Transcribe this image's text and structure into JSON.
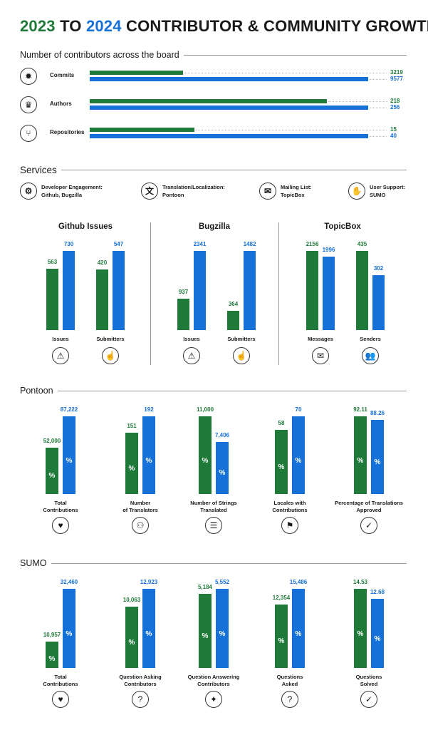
{
  "title": {
    "year1": "2023",
    "to": "TO",
    "year2": "2024",
    "rest": "CONTRIBUTOR & COMMUNITY GROWTH"
  },
  "colors": {
    "y2023": "#1f7a3a",
    "y2024": "#1570d8"
  },
  "sections": {
    "contributors": "Number of contributors across the board",
    "services": "Services",
    "pontoon": "Pontoon",
    "sumo": "SUMO"
  },
  "contributors": [
    {
      "label": "Commits",
      "icon": "commits-icon",
      "v2023": 3219,
      "v2024": 9577,
      "t2023": "3219",
      "t2024": "9577"
    },
    {
      "label": "Authors",
      "icon": "authors-icon",
      "v2023": 218,
      "v2024": 256,
      "t2023": "218",
      "t2024": "256"
    },
    {
      "label": "Repositories",
      "icon": "repositories-icon",
      "v2023": 15,
      "v2024": 40,
      "t2023": "15",
      "t2024": "40"
    }
  ],
  "services": [
    {
      "line1": "Developer Engagement:",
      "line2": "Github, Bugzilla",
      "icon": "developer-icon"
    },
    {
      "line1": "Translation/Localization:",
      "line2": "Pontoon",
      "icon": "translation-icon"
    },
    {
      "line1": "Mailing List:",
      "line2": "TopicBox",
      "icon": "mailing-list-icon"
    },
    {
      "line1": "User Support:",
      "line2": "SUMO",
      "icon": "user-support-icon"
    }
  ],
  "chart_data": [
    {
      "type": "bar",
      "title": "Github Issues",
      "series": [
        "2023",
        "2024"
      ],
      "categories": [
        "Issues",
        "Submitters"
      ],
      "values": [
        [
          563,
          730
        ],
        [
          420,
          547
        ]
      ],
      "labels": [
        [
          "563",
          "730"
        ],
        [
          "420",
          "547"
        ]
      ]
    },
    {
      "type": "bar",
      "title": "Bugzilla",
      "series": [
        "2023",
        "2024"
      ],
      "categories": [
        "Issues",
        "Submitters"
      ],
      "values": [
        [
          937,
          2341
        ],
        [
          364,
          1482
        ]
      ],
      "labels": [
        [
          "937",
          "2341"
        ],
        [
          "364",
          "1482"
        ]
      ]
    },
    {
      "type": "bar",
      "title": "TopicBox",
      "series": [
        "2023",
        "2024"
      ],
      "categories": [
        "Messages",
        "Senders"
      ],
      "values": [
        [
          2156,
          1996
        ],
        [
          435,
          302
        ]
      ],
      "labels": [
        [
          "2156",
          "1996"
        ],
        [
          "435",
          "302"
        ]
      ]
    },
    {
      "type": "bar",
      "title": "Pontoon",
      "series": [
        "2023",
        "2024"
      ],
      "categories": [
        "Total\nContributions",
        "Number\nof Translators",
        "Number of Strings\nTranslated",
        "Locales with\nContributions",
        "Percentage of Translations\nApproved"
      ],
      "values": [
        [
          52000,
          87222
        ],
        [
          151,
          192
        ],
        [
          11000,
          7406
        ],
        [
          58,
          70
        ],
        [
          92.11,
          88.26
        ]
      ],
      "labels": [
        [
          "52,000",
          "87,222"
        ],
        [
          "151",
          "192"
        ],
        [
          "11,000",
          "7,406"
        ],
        [
          "58",
          "70"
        ],
        [
          "92.11",
          "88.26"
        ]
      ],
      "percent_symbol": "%"
    },
    {
      "type": "bar",
      "title": "SUMO",
      "series": [
        "2023",
        "2024"
      ],
      "categories": [
        "Total\nContributions",
        "Question Asking\nContributors",
        "Question Answering\nContributors",
        "Questions\nAsked",
        "Questions\nSolved"
      ],
      "values": [
        [
          10957,
          32460
        ],
        [
          10063,
          12923
        ],
        [
          5184,
          5552
        ],
        [
          12354,
          15486
        ],
        [
          14.53,
          12.68
        ]
      ],
      "labels": [
        [
          "10,957",
          "32,460"
        ],
        [
          "10,063",
          "12,923"
        ],
        [
          "5,184",
          "5,552"
        ],
        [
          "12,354",
          "15,486"
        ],
        [
          "14.53",
          "12.68"
        ]
      ],
      "percent_symbol": "%"
    }
  ]
}
